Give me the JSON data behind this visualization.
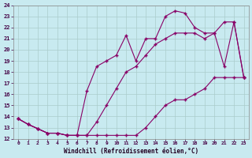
{
  "xlabel": "Windchill (Refroidissement éolien,°C)",
  "bg_color": "#c8eaf0",
  "line_color": "#880066",
  "grid_color": "#aacccc",
  "xlim": [
    -0.5,
    23.5
  ],
  "ylim": [
    12,
    24
  ],
  "xticks": [
    0,
    1,
    2,
    3,
    4,
    5,
    6,
    7,
    8,
    9,
    10,
    11,
    12,
    13,
    14,
    15,
    16,
    17,
    18,
    19,
    20,
    21,
    22,
    23
  ],
  "yticks": [
    12,
    13,
    14,
    15,
    16,
    17,
    18,
    19,
    20,
    21,
    22,
    23,
    24
  ],
  "line1_x": [
    0,
    1,
    2,
    3,
    4,
    5,
    6,
    7,
    8,
    9,
    10,
    11,
    12,
    13,
    14,
    15,
    16,
    17,
    18,
    19,
    20,
    21,
    22,
    23
  ],
  "line1_y": [
    13.8,
    13.3,
    12.9,
    12.5,
    12.5,
    12.3,
    12.3,
    12.3,
    12.3,
    12.3,
    12.3,
    12.3,
    12.3,
    13.0,
    14.0,
    15.0,
    15.5,
    15.5,
    16.0,
    16.5,
    17.5,
    17.5,
    17.5,
    17.5
  ],
  "line2_x": [
    0,
    1,
    2,
    3,
    4,
    5,
    6,
    7,
    8,
    9,
    10,
    11,
    12,
    13,
    14,
    15,
    16,
    17,
    18,
    19,
    20,
    21,
    22,
    23
  ],
  "line2_y": [
    13.8,
    13.3,
    12.9,
    12.5,
    12.5,
    12.3,
    12.3,
    12.3,
    13.5,
    15.0,
    16.5,
    18.0,
    18.5,
    19.5,
    20.5,
    21.0,
    21.5,
    21.5,
    21.5,
    21.0,
    21.5,
    18.5,
    22.5,
    17.5
  ],
  "line3_x": [
    0,
    1,
    2,
    3,
    4,
    5,
    6,
    7,
    8,
    9,
    10,
    11,
    12,
    13,
    14,
    15,
    16,
    17,
    18,
    19,
    20,
    21,
    22,
    23
  ],
  "line3_y": [
    13.8,
    13.3,
    12.9,
    12.5,
    12.5,
    12.3,
    12.3,
    16.3,
    18.5,
    19.0,
    19.5,
    21.3,
    19.0,
    21.0,
    21.0,
    23.0,
    23.5,
    23.3,
    22.0,
    21.5,
    21.5,
    22.5,
    22.5,
    17.5
  ]
}
